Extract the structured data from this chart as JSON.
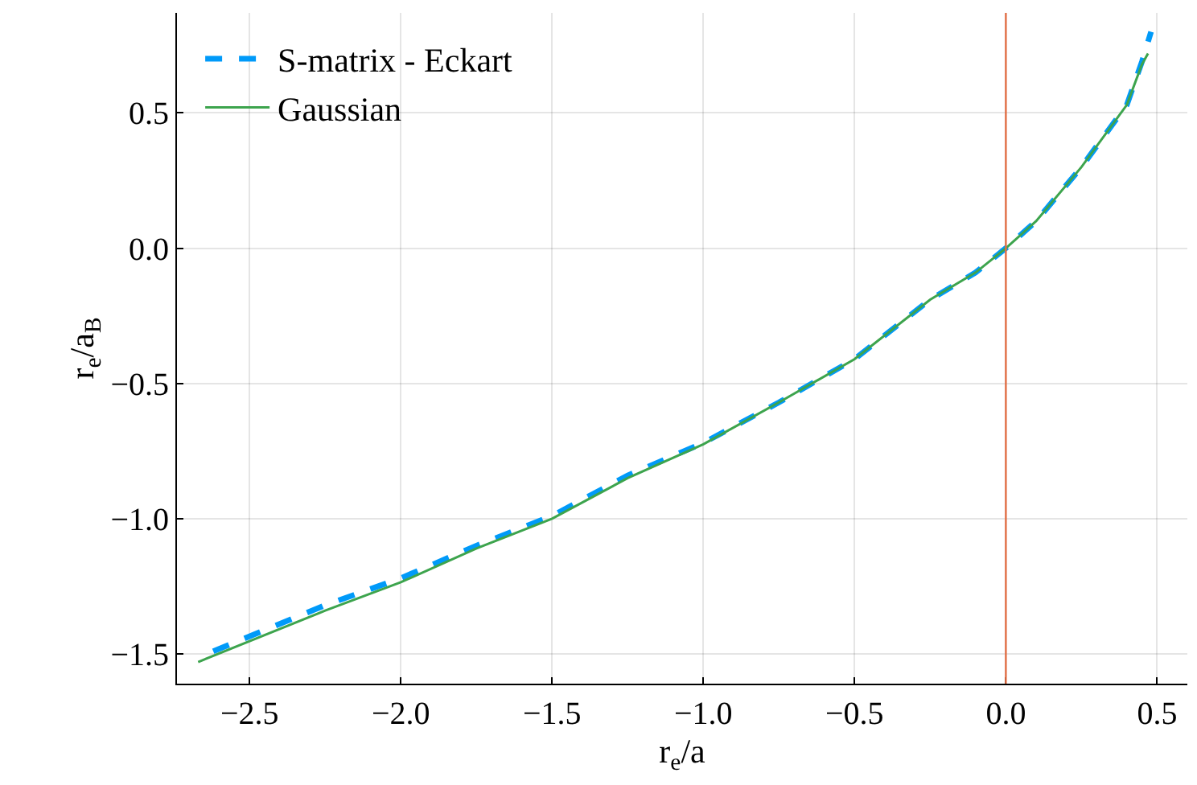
{
  "chart_data": {
    "type": "line",
    "xlabel": "r$_{e}$/a",
    "ylabel": "r$_{e}$/a$_{B}$",
    "xlim": [
      -2.74,
      0.6
    ],
    "ylim": [
      -1.61,
      0.87
    ],
    "xticks": [
      {
        "value": -2.5,
        "label": "−2.5"
      },
      {
        "value": -2.0,
        "label": "−2.0"
      },
      {
        "value": -1.5,
        "label": "−1.5"
      },
      {
        "value": -1.0,
        "label": "−1.0"
      },
      {
        "value": -0.5,
        "label": "−0.5"
      },
      {
        "value": 0.0,
        "label": "0.0"
      },
      {
        "value": 0.5,
        "label": "0.5"
      }
    ],
    "yticks": [
      {
        "value": -1.5,
        "label": "−1.5"
      },
      {
        "value": -1.0,
        "label": "−1.0"
      },
      {
        "value": -0.5,
        "label": "−0.5"
      },
      {
        "value": 0.0,
        "label": "0.0"
      },
      {
        "value": 0.5,
        "label": "0.5"
      }
    ],
    "grid": true,
    "legend": "top left",
    "marker": "none",
    "series": [
      {
        "name": "S-matrix - Eckart",
        "color": "#009af9",
        "line_style": "dashed",
        "x": [
          -2.62,
          -2.25,
          -2.0,
          -1.75,
          -1.5,
          -1.25,
          -1.0,
          -0.75,
          -0.5,
          -0.25,
          -0.1,
          0.0,
          0.1,
          0.25,
          0.4,
          0.45,
          0.48
        ],
        "values": [
          -1.49,
          -1.32,
          -1.22,
          -1.1,
          -0.99,
          -0.84,
          -0.72,
          -0.57,
          -0.41,
          -0.19,
          -0.09,
          0.0,
          0.1,
          0.3,
          0.53,
          0.69,
          0.8
        ]
      },
      {
        "name": "Gaussian",
        "color": "#3da44d",
        "line_style": "solid",
        "x": [
          -2.67,
          -2.25,
          -2.0,
          -1.75,
          -1.5,
          -1.25,
          -1.0,
          -0.75,
          -0.5,
          -0.25,
          -0.1,
          0.0,
          0.1,
          0.25,
          0.4,
          0.45,
          0.47
        ],
        "values": [
          -1.53,
          -1.34,
          -1.235,
          -1.11,
          -1.0,
          -0.85,
          -0.725,
          -0.57,
          -0.41,
          -0.19,
          -0.09,
          0.0,
          0.1,
          0.3,
          0.53,
          0.68,
          0.72
        ]
      }
    ],
    "ref_lines": [
      {
        "axis": "x",
        "value": 0.0,
        "color": "#e26f46"
      }
    ]
  }
}
